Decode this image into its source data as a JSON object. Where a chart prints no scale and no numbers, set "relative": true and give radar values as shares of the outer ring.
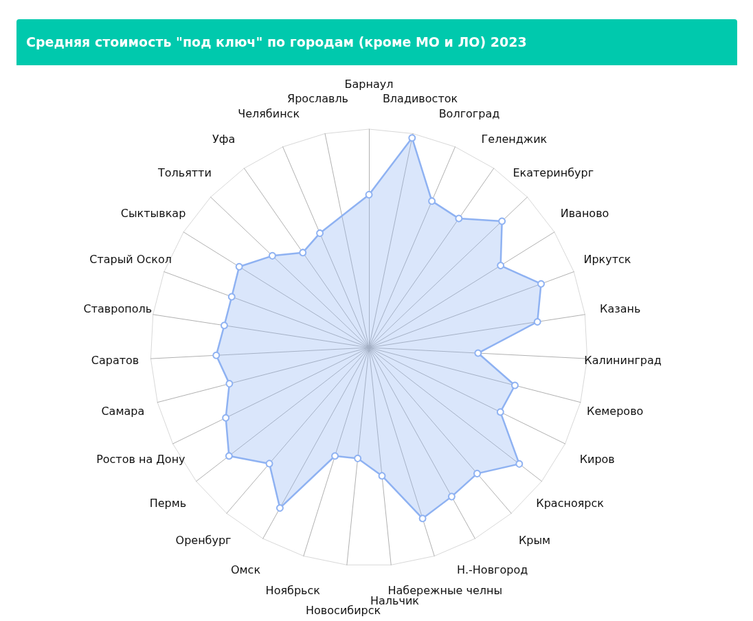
{
  "chart_data": {
    "type": "radar",
    "title": "Средняя стоимость \"под ключ\" по городам (кроме МО и ЛО) 2023",
    "categories": [
      "Барнаул",
      "Владивосток",
      "Волгоград",
      "Геленджик",
      "Екатеринбург",
      "Иваново",
      "Иркутск",
      "Казань",
      "Калининград",
      "Кемерово",
      "Киров",
      "Красноярск",
      "Крым",
      "Н.-Новгород",
      "Набережные челны",
      "Нальчик",
      "Новосибирск",
      "Ноябрьск",
      "Омск",
      "Оренбург",
      "Пермь",
      "Ростов на Дону",
      "Самара",
      "Саратов",
      "Ставрополь",
      "Старый Оскол",
      "Сыктывкар",
      "Тольятти",
      "Уфа",
      "Челябинск",
      "Ярославль"
    ],
    "series": [
      {
        "color": "#8fb2f2",
        "values": [
          0.7,
          0.98,
          0.73,
          0.72,
          0.84,
          0.71,
          0.84,
          0.78,
          0.5,
          0.69,
          0.67,
          0.87,
          0.76,
          0.78,
          0.82,
          0.59,
          0.51,
          0.52,
          0.84,
          0.7,
          0.81,
          0.73,
          0.66,
          0.7,
          0.67,
          0.67,
          0.7,
          0.61,
          0.53,
          0.57,
          null
        ]
      }
    ],
    "relative": true,
    "grid": true,
    "marker": "circle"
  }
}
